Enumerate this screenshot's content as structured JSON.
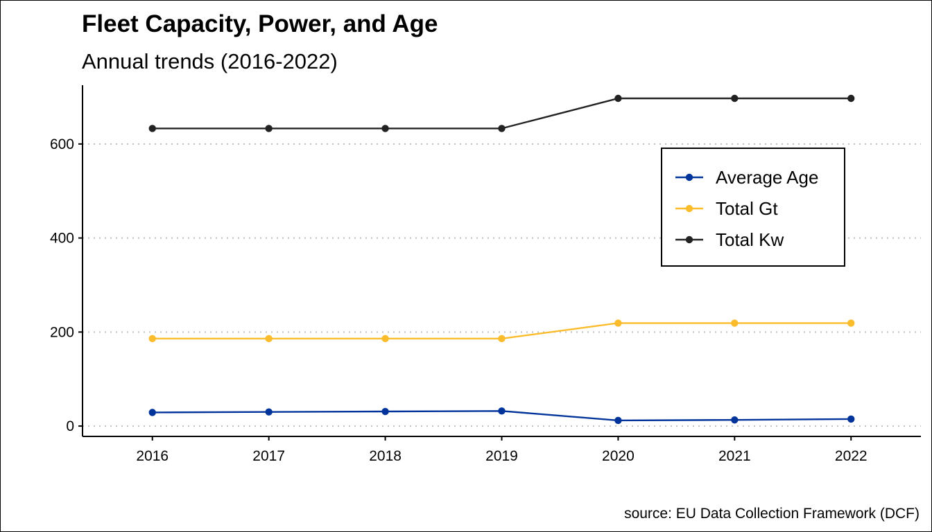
{
  "chart_data": {
    "type": "line",
    "title": "Fleet Capacity, Power, and Age",
    "subtitle": "Annual trends (2016-2022)",
    "caption": "source: EU Data Collection Framework (DCF)",
    "xlabel": "",
    "ylabel": "",
    "x": [
      2016,
      2017,
      2018,
      2019,
      2020,
      2021,
      2022
    ],
    "x_tick_labels": [
      "2016",
      "2017",
      "2018",
      "2019",
      "2020",
      "2021",
      "2022"
    ],
    "xlim": [
      2015.4,
      2022.6
    ],
    "ylim": [
      -22,
      725
    ],
    "y_ticks": [
      0,
      200,
      400,
      600
    ],
    "y_tick_labels": [
      "0",
      "200",
      "400",
      "600"
    ],
    "grid": "horizontal dotted",
    "legend_position": "top-right",
    "series": [
      {
        "name": "Average Age",
        "color": "#00349B",
        "values": [
          29,
          30,
          31,
          32,
          12,
          13,
          15
        ]
      },
      {
        "name": "Total Gt",
        "color": "#FBBC2B",
        "values": [
          186,
          186,
          186,
          186,
          219,
          219,
          219
        ]
      },
      {
        "name": "Total Kw",
        "color": "#222222",
        "values": [
          633,
          633,
          633,
          633,
          697,
          697,
          697
        ]
      }
    ],
    "colors": {
      "grid": "#BEBEBE",
      "axis": "#000000"
    }
  }
}
